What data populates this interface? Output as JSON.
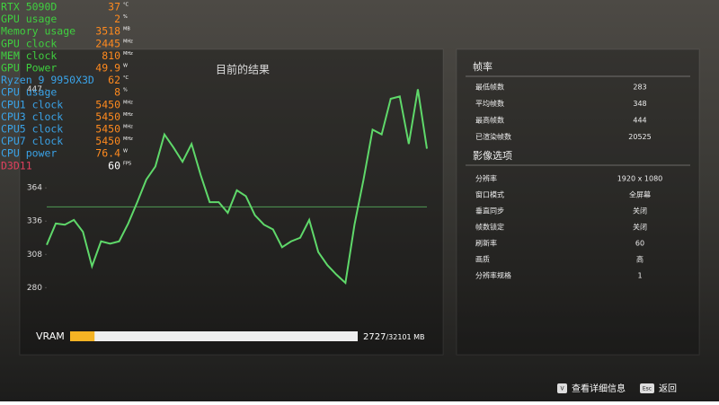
{
  "osd": [
    {
      "label": "RTX 5090D",
      "value": 37,
      "unit": "°C",
      "label_color": "#3fcf3f",
      "value_color": "#ff8a1e"
    },
    {
      "label": "GPU usage",
      "value": 2,
      "unit": "%",
      "label_color": "#3fcf3f",
      "value_color": "#ff8a1e"
    },
    {
      "label": "Memory usage",
      "value": 3518,
      "unit": "MB",
      "label_color": "#3fcf3f",
      "value_color": "#ff8a1e"
    },
    {
      "label": "GPU clock",
      "value": 2445,
      "unit": "MHz",
      "label_color": "#3fcf3f",
      "value_color": "#ff8a1e"
    },
    {
      "label": "MEM  clock",
      "value": 810,
      "unit": "MHz",
      "label_color": "#3fcf3f",
      "value_color": "#ff8a1e"
    },
    {
      "label": "GPU Power",
      "value": 49.9,
      "unit": "W",
      "label_color": "#3fcf3f",
      "value_color": "#ff8a1e"
    },
    {
      "label": "Ryzen 9 9950X3D",
      "value": 62,
      "unit": "°C",
      "label_color": "#3aa3e8",
      "value_color": "#ff8a1e"
    },
    {
      "label": "CPU usage",
      "value": 8,
      "unit": "%",
      "label_color": "#3aa3e8",
      "value_color": "#ff8a1e"
    },
    {
      "label": "CPU1 clock",
      "value": 5450,
      "unit": "MHz",
      "label_color": "#3aa3e8",
      "value_color": "#ff8a1e"
    },
    {
      "label": "CPU3 clock",
      "value": 5450,
      "unit": "MHz",
      "label_color": "#3aa3e8",
      "value_color": "#ff8a1e"
    },
    {
      "label": "CPU5 clock",
      "value": 5450,
      "unit": "MHz",
      "label_color": "#3aa3e8",
      "value_color": "#ff8a1e"
    },
    {
      "label": "CPU7 clock",
      "value": 5450,
      "unit": "MHz",
      "label_color": "#3aa3e8",
      "value_color": "#ff8a1e"
    },
    {
      "label": "CPU power",
      "value": 76.4,
      "unit": "W",
      "label_color": "#3aa3e8",
      "value_color": "#ff8a1e"
    },
    {
      "label": "D3D11",
      "value": 60,
      "unit": "FPS",
      "label_color": "#e0405e",
      "value_color": "#ffffff"
    }
  ],
  "chart_data": {
    "type": "line",
    "title": "目前的结果",
    "color": "#5fd86a",
    "values": [
      316,
      334,
      333,
      337,
      327,
      298,
      319,
      317,
      319,
      334,
      352,
      371,
      382,
      409,
      398,
      386,
      401,
      375,
      352,
      352,
      343,
      362,
      357,
      341,
      333,
      329,
      314,
      319,
      322,
      337,
      310,
      299,
      291,
      284,
      333,
      371,
      413,
      409,
      439,
      441,
      401,
      447,
      397
    ],
    "ylim": [
      250,
      470
    ],
    "yticks": [
      280,
      308,
      336,
      364,
      447
    ]
  },
  "frame_rate": {
    "title": "帧率",
    "rows": [
      {
        "label": "最低帧数",
        "value": 283
      },
      {
        "label": "平均帧数",
        "value": 348
      },
      {
        "label": "最高帧数",
        "value": 444
      },
      {
        "label": "已渲染帧数",
        "value": 20525
      }
    ]
  },
  "video_options": {
    "title": "影像选项",
    "rows": [
      {
        "label": "分辨率",
        "value": "1920 x 1080"
      },
      {
        "label": "窗口模式",
        "value": "全屏幕"
      },
      {
        "label": "垂直同步",
        "value": "关闭"
      },
      {
        "label": "帧数锁定",
        "value": "关闭"
      },
      {
        "label": "刷新率",
        "value": "60"
      },
      {
        "label": "画质",
        "value": "高"
      },
      {
        "label": "分辨率规格",
        "value": "1"
      }
    ]
  },
  "vram": {
    "label": "VRAM",
    "used": 2727,
    "total": {
      "value": 32101,
      "label": "/32101 MB"
    }
  },
  "footer": [
    {
      "key": "V",
      "label": "查看详细信息"
    },
    {
      "key": "Esc",
      "label": "返回"
    }
  ]
}
